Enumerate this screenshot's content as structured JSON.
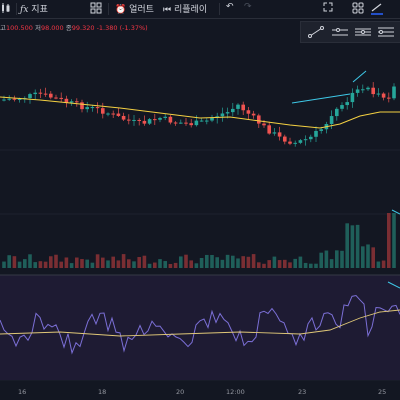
{
  "toolbar": {
    "items": [
      {
        "name": "indicators-button",
        "label": "지표"
      },
      {
        "name": "alert-button",
        "label": "얼러트"
      },
      {
        "name": "replay-button",
        "label": "리플레이"
      }
    ]
  },
  "ohlc": {
    "high_label": "고",
    "high": "100.500",
    "low_label": "저",
    "low": "98.000",
    "close_label": "종",
    "close": "99.320",
    "change": "-1.380",
    "change_pct": "(-1.37%)"
  },
  "x_axis_labels": [
    "16",
    "18",
    "20",
    "12:00",
    "23",
    "25"
  ],
  "colors": {
    "background": "#131722",
    "grid": "#2a2e39",
    "up": "#26a69a",
    "down": "#ef5350",
    "ma_line": "#f5d142",
    "rsi_line": "#7b6fd6",
    "rsi_ma": "#e0c878",
    "rsi_panel": "#1e1b33",
    "trendline": "#3ec9e8"
  }
}
